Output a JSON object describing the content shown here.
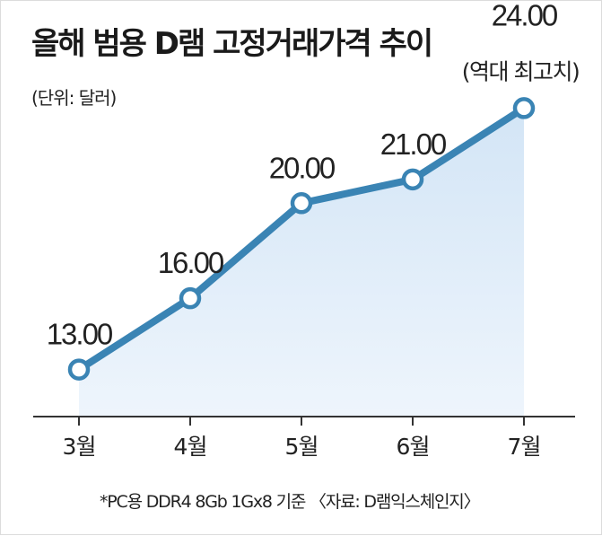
{
  "chart_data": {
    "type": "line",
    "title": "올해 범용 D램 고정거래가격 추이",
    "unit_label": "(단위: 달러)",
    "categories": [
      "3월",
      "4월",
      "5월",
      "6월",
      "7월"
    ],
    "series": [
      {
        "values": [
          13.0,
          16.0,
          20.0,
          21.0,
          24.0
        ]
      }
    ],
    "data_labels": [
      "13.00",
      "16.00",
      "20.00",
      "21.00",
      "24.00"
    ],
    "annotation": {
      "index": 4,
      "text": "(역대 최고치)"
    },
    "footnote": "*PC용 DDR4 8Gb 1Gx8 기준 〈자료: D램익스체인지〉",
    "ylim": [
      10,
      27
    ],
    "grid": false,
    "colors": {
      "line": "#3a84b4",
      "area_top": "#d3e5f6",
      "area_bottom": "#eef5fc",
      "axis": "#333333",
      "marker_fill": "#ffffff"
    }
  }
}
